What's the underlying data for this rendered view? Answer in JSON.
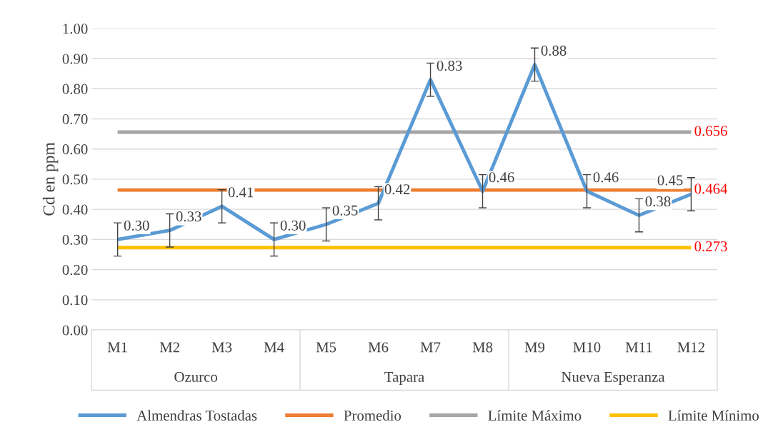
{
  "chart_data": {
    "type": "line",
    "ylabel": "Cd en ppm",
    "categories": [
      "M1",
      "M2",
      "M3",
      "M4",
      "M5",
      "M6",
      "M7",
      "M8",
      "M9",
      "M10",
      "M11",
      "M12"
    ],
    "series": [
      {
        "name": "Almendras Tostadas",
        "color": "#5b9bd5",
        "values": [
          0.3,
          0.33,
          0.41,
          0.3,
          0.35,
          0.42,
          0.83,
          0.46,
          0.88,
          0.46,
          0.38,
          0.45
        ],
        "errors": [
          0.055,
          0.055,
          0.055,
          0.055,
          0.055,
          0.055,
          0.055,
          0.055,
          0.055,
          0.055,
          0.055,
          0.055
        ],
        "value_labels": [
          "0.30",
          "0.33",
          "0.41",
          "0.30",
          "0.35",
          "0.42",
          "0.83",
          "0.46",
          "0.88",
          "0.46",
          "0.38",
          "0.45"
        ]
      },
      {
        "name": "Promedio",
        "color": "#ed7d31",
        "values": [
          0.464,
          0.464,
          0.464,
          0.464,
          0.464,
          0.464,
          0.464,
          0.464,
          0.464,
          0.464,
          0.464,
          0.464
        ],
        "value_labels": [
          null,
          null,
          null,
          null,
          null,
          null,
          null,
          null,
          null,
          null,
          null,
          "0.464"
        ]
      },
      {
        "name": "Límite Máximo",
        "color": "#a5a5a5",
        "values": [
          0.656,
          0.656,
          0.656,
          0.656,
          0.656,
          0.656,
          0.656,
          0.656,
          0.656,
          0.656,
          0.656,
          0.656
        ],
        "value_labels": [
          null,
          null,
          null,
          null,
          null,
          null,
          null,
          null,
          null,
          null,
          null,
          "0.656"
        ]
      },
      {
        "name": "Límite Mínimo",
        "color": "#ffc000",
        "values": [
          0.273,
          0.273,
          0.273,
          0.273,
          0.273,
          0.273,
          0.273,
          0.273,
          0.273,
          0.273,
          0.273,
          0.273
        ],
        "value_labels": [
          null,
          null,
          null,
          null,
          null,
          null,
          null,
          null,
          null,
          null,
          null,
          "0.273"
        ]
      }
    ],
    "annotations": [
      "Ozurco",
      "Tapara",
      "Nueva Esperanza"
    ],
    "ylim": [
      0,
      1
    ],
    "yticks": [
      {
        "value": 0,
        "label": "0.00"
      },
      {
        "value": 0.1,
        "label": "0.10"
      },
      {
        "value": 0.2,
        "label": "0.20"
      },
      {
        "value": 0.3,
        "label": "0.30"
      },
      {
        "value": 0.4,
        "label": "0.40"
      },
      {
        "value": 0.5,
        "label": "0.50"
      },
      {
        "value": 0.6,
        "label": "0.60"
      },
      {
        "value": 0.7,
        "label": "0.70"
      },
      {
        "value": 0.8,
        "label": "0.80"
      },
      {
        "value": 0.9,
        "label": "0.90"
      },
      {
        "value": 1,
        "label": "1.00"
      }
    ],
    "grid": "y",
    "legend": "bottom",
    "marker": "none",
    "line_style": "solid"
  }
}
